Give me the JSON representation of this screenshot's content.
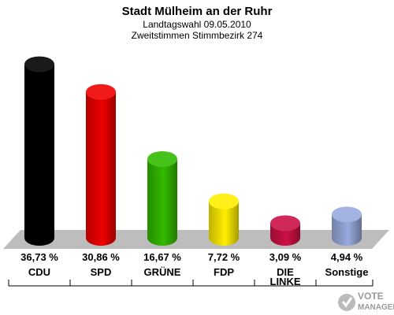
{
  "chart_data": {
    "type": "bar",
    "title": "Stadt Mülheim an der Ruhr",
    "subtitle_lines": [
      "Landtagswahl 09.05.2010",
      "Zweitstimmen Stimmbezirk 274"
    ],
    "categories": [
      [
        "CDU"
      ],
      [
        "SPD"
      ],
      [
        "GRÜNE"
      ],
      [
        "FDP"
      ],
      [
        "DIE",
        "LINKE"
      ],
      [
        "Sonstige"
      ]
    ],
    "values": [
      36.73,
      30.86,
      16.67,
      7.72,
      3.09,
      4.94
    ],
    "value_labels": [
      "36,73 %",
      "30,86 %",
      "16,67 %",
      "7,72 %",
      "3,09 %",
      "4,94 %"
    ],
    "colors": [
      "#000000",
      "#ee0000",
      "#33bb00",
      "#ffee00",
      "#cc1144",
      "#99aadd"
    ],
    "ylim": [
      0,
      40
    ],
    "grid": false,
    "legend": "none"
  },
  "watermark": {
    "lines": [
      "VOTE",
      "MANAGER"
    ],
    "icon": "vote-manager-logo-icon"
  }
}
